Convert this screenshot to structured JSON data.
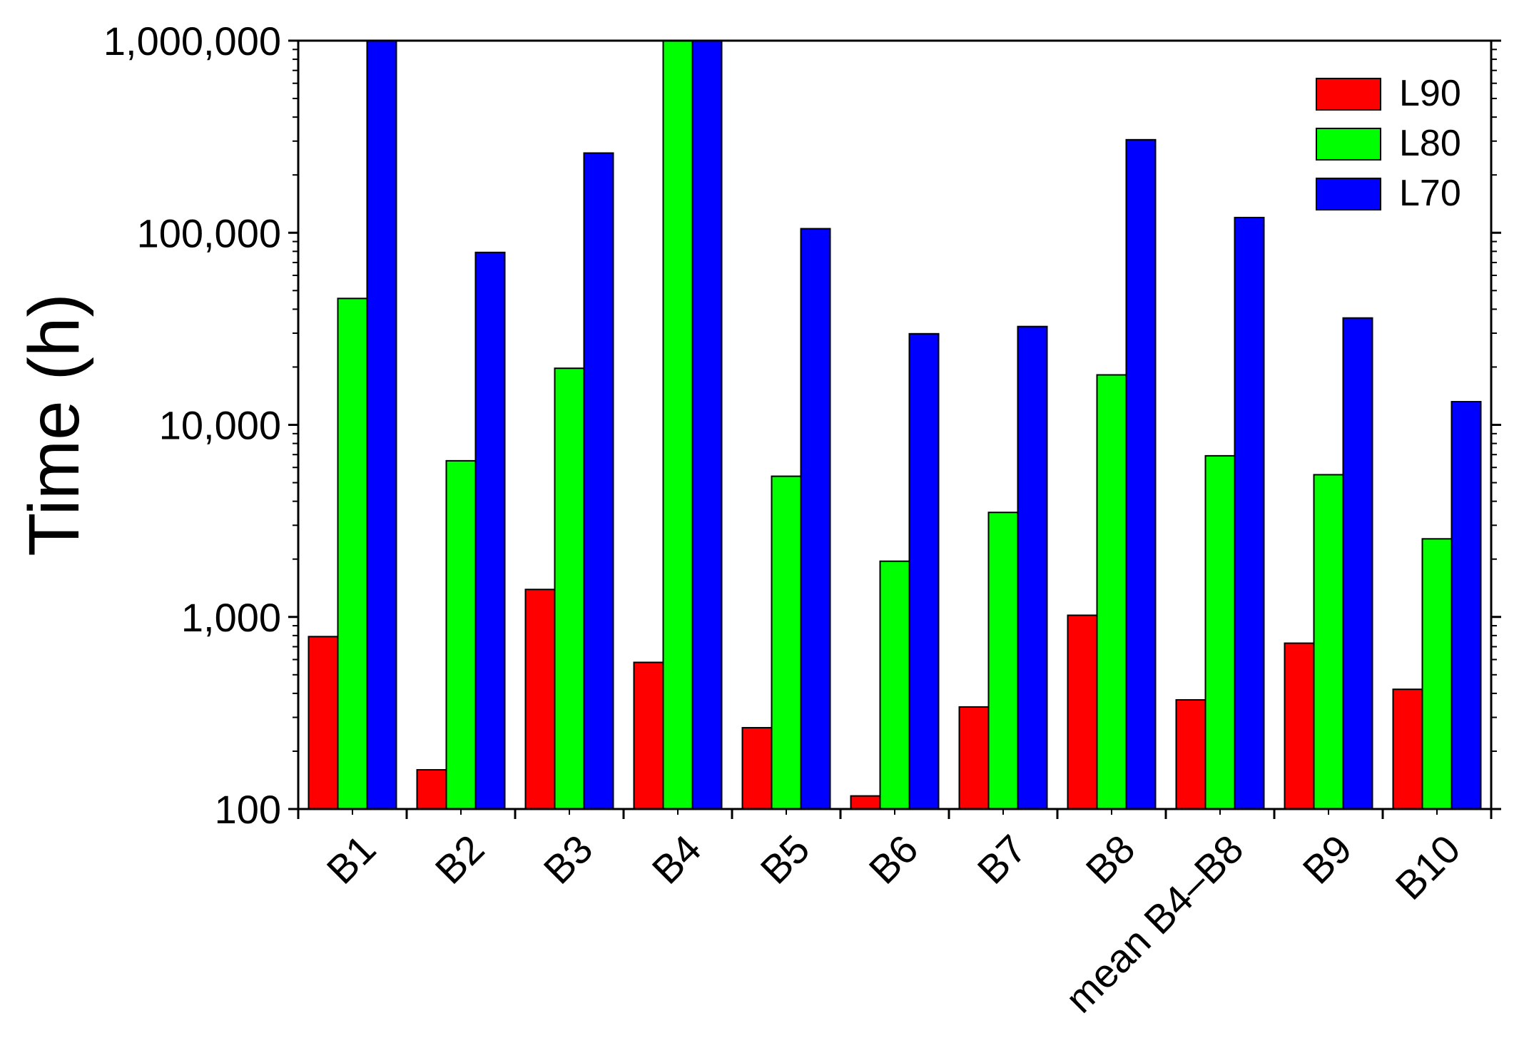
{
  "chart_data": {
    "type": "bar",
    "title": "",
    "xlabel": "",
    "ylabel": "Time (h)",
    "yscale": "log",
    "ylim": [
      100,
      1000000
    ],
    "yticks": [
      100,
      1000,
      10000,
      100000,
      1000000
    ],
    "ytick_labels": [
      "100",
      "1,000",
      "10,000",
      "100,000",
      "1,000,000"
    ],
    "categories": [
      "B1",
      "B2",
      "B3",
      "B4",
      "B5",
      "B6",
      "B7",
      "B8",
      "mean B4–B8",
      "B9",
      "B10"
    ],
    "series": [
      {
        "name": "L90",
        "color": "#ff0000",
        "values": [
          790,
          160,
          1390,
          580,
          265,
          117,
          340,
          1020,
          370,
          730,
          420
        ]
      },
      {
        "name": "L80",
        "color": "#00ff00",
        "values": [
          45500,
          6500,
          19700,
          1000000,
          5400,
          1950,
          3500,
          18200,
          6900,
          5500,
          2550
        ]
      },
      {
        "name": "L70",
        "color": "#0000ff",
        "values": [
          1000000,
          79000,
          260000,
          1000000,
          105000,
          29800,
          32500,
          305000,
          120000,
          36000,
          13200
        ]
      }
    ],
    "grid": false,
    "legend_position": "top-right"
  }
}
